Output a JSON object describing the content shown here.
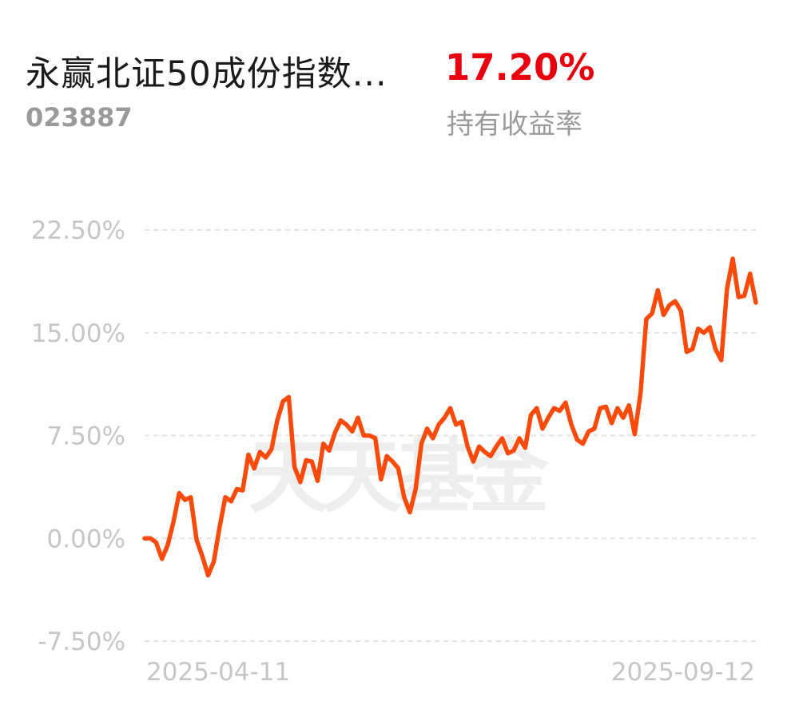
{
  "header": {
    "fund_name": "永赢北证50成份指数...",
    "fund_code": "023887",
    "return_value": "17.20%",
    "return_label": "持有收益率"
  },
  "watermark": "天天基金",
  "colors": {
    "line": "#fc4a0a",
    "return": "#e8000f",
    "grid": "#e3e3e3",
    "tick_text": "#c6c6c6",
    "watermark": "#eeeeee"
  },
  "chart_data": {
    "type": "line",
    "title": "",
    "xlabel": "",
    "ylabel": "",
    "x_start_label": "2025-04-11",
    "x_end_label": "2025-09-12",
    "y_ticks": [
      "22.50%",
      "15.00%",
      "7.50%",
      "0.00%",
      "-7.50%"
    ],
    "y_tick_values": [
      22.5,
      15.0,
      7.5,
      0.0,
      -7.5
    ],
    "ylim": [
      -7.5,
      22.5
    ],
    "grid": true,
    "series": [
      {
        "values": [
          0.0,
          0.0,
          -0.3,
          -1.5,
          -0.5,
          1.2,
          3.3,
          2.8,
          3.0,
          -0.1,
          -1.3,
          -2.7,
          -1.7,
          0.8,
          3.0,
          2.7,
          3.6,
          3.5,
          6.1,
          5.1,
          6.3,
          5.9,
          6.5,
          8.6,
          10.0,
          10.3,
          5.2,
          4.1,
          5.7,
          5.6,
          4.2,
          6.9,
          6.4,
          7.7,
          8.6,
          8.3,
          7.8,
          8.8,
          7.5,
          7.5,
          7.3,
          4.3,
          6.0,
          5.6,
          5.1,
          3.0,
          1.9,
          3.6,
          6.9,
          8.0,
          7.3,
          8.3,
          8.8,
          9.5,
          8.3,
          8.5,
          6.7,
          5.6,
          6.7,
          6.3,
          6.0,
          6.7,
          7.3,
          6.2,
          6.4,
          7.3,
          6.6,
          9.0,
          9.5,
          8.0,
          8.8,
          9.5,
          9.3,
          9.9,
          8.3,
          7.2,
          6.9,
          7.8,
          8.0,
          9.5,
          9.6,
          8.4,
          9.5,
          8.8,
          9.7,
          7.6,
          10.6,
          16.0,
          16.4,
          18.1,
          16.3,
          17.0,
          17.3,
          16.6,
          13.6,
          13.8,
          15.3,
          15.0,
          15.4,
          13.8,
          13.0,
          18.2,
          20.4,
          17.6,
          17.7,
          19.3,
          17.2
        ]
      }
    ]
  }
}
